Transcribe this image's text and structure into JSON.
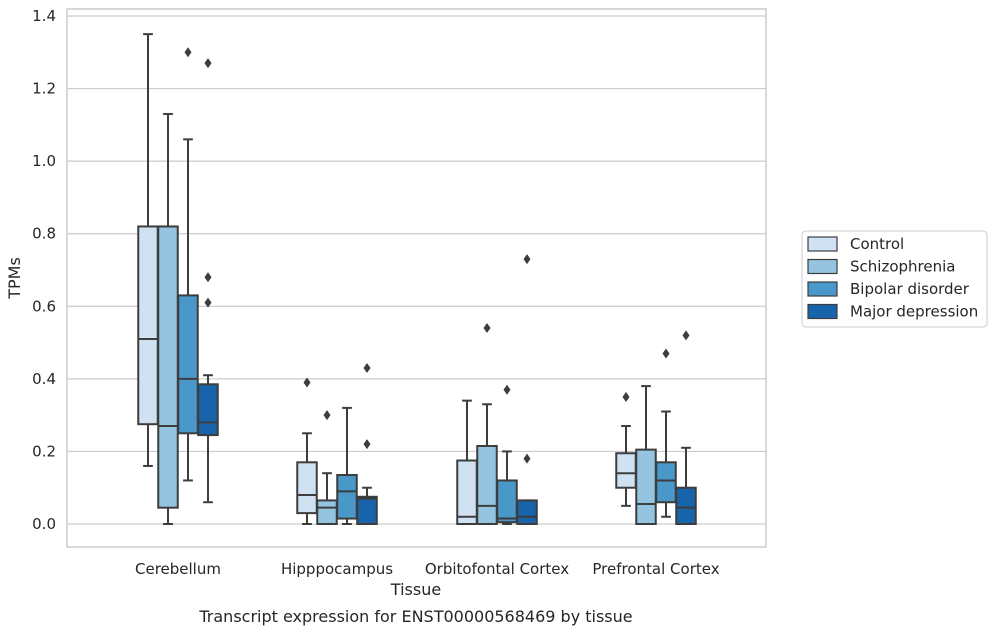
{
  "chart_data": {
    "type": "box",
    "title": "Transcript expression for ENST00000568469 by tissue",
    "xlabel": "Tissue",
    "ylabel": "TPMs",
    "ylim": [
      -0.065,
      1.42
    ],
    "yticks": [
      "0.0",
      "0.2",
      "0.4",
      "0.6",
      "0.8",
      "1.0",
      "1.2",
      "1.4"
    ],
    "ytick_values": [
      0,
      0.2,
      0.4,
      0.6,
      0.8,
      1.0,
      1.2,
      1.4
    ],
    "grid": true,
    "legend_position": "right",
    "categories": [
      "Cerebellum",
      "Hipppocampus",
      "Orbitofontal Cortex",
      "Prefrontal Cortex"
    ],
    "series": [
      {
        "name": "Control",
        "color": "#d0e1f2",
        "boxes": [
          {
            "whislo": 0.16,
            "q1": 0.275,
            "med": 0.51,
            "q3": 0.82,
            "whishi": 1.35,
            "fliers": []
          },
          {
            "whislo": 0.0,
            "q1": 0.03,
            "med": 0.08,
            "q3": 0.17,
            "whishi": 0.25,
            "fliers": [
              0.39
            ]
          },
          {
            "whislo": 0.0,
            "q1": 0.0,
            "med": 0.02,
            "q3": 0.175,
            "whishi": 0.34,
            "fliers": []
          },
          {
            "whislo": 0.05,
            "q1": 0.1,
            "med": 0.14,
            "q3": 0.195,
            "whishi": 0.27,
            "fliers": [
              0.35
            ]
          }
        ]
      },
      {
        "name": "Schizophrenia",
        "color": "#94c4df",
        "boxes": [
          {
            "whislo": 0.0,
            "q1": 0.045,
            "med": 0.27,
            "q3": 0.82,
            "whishi": 1.13,
            "fliers": []
          },
          {
            "whislo": 0.0,
            "q1": 0.0,
            "med": 0.045,
            "q3": 0.065,
            "whishi": 0.14,
            "fliers": [
              0.3
            ]
          },
          {
            "whislo": 0.0,
            "q1": 0.0,
            "med": 0.05,
            "q3": 0.215,
            "whishi": 0.33,
            "fliers": [
              0.54
            ]
          },
          {
            "whislo": 0.0,
            "q1": 0.0,
            "med": 0.055,
            "q3": 0.205,
            "whishi": 0.38,
            "fliers": []
          }
        ]
      },
      {
        "name": "Bipolar disorder",
        "color": "#4a98c9",
        "boxes": [
          {
            "whislo": 0.12,
            "q1": 0.25,
            "med": 0.4,
            "q3": 0.63,
            "whishi": 1.06,
            "fliers": [
              1.3
            ]
          },
          {
            "whislo": 0.0,
            "q1": 0.015,
            "med": 0.09,
            "q3": 0.135,
            "whishi": 0.32,
            "fliers": []
          },
          {
            "whislo": 0.0,
            "q1": 0.005,
            "med": 0.015,
            "q3": 0.12,
            "whishi": 0.2,
            "fliers": [
              0.37
            ]
          },
          {
            "whislo": 0.02,
            "q1": 0.06,
            "med": 0.12,
            "q3": 0.17,
            "whishi": 0.31,
            "fliers": [
              0.47
            ]
          }
        ]
      },
      {
        "name": "Major depression",
        "color": "#1764ab",
        "boxes": [
          {
            "whislo": 0.06,
            "q1": 0.245,
            "med": 0.28,
            "q3": 0.385,
            "whishi": 0.41,
            "fliers": [
              0.61,
              0.68,
              1.27
            ]
          },
          {
            "whislo": 0.0,
            "q1": 0.0,
            "med": 0.07,
            "q3": 0.075,
            "whishi": 0.1,
            "fliers": [
              0.22,
              0.43
            ]
          },
          {
            "whislo": 0.0,
            "q1": 0.0,
            "med": 0.02,
            "q3": 0.065,
            "whishi": 0.065,
            "fliers": [
              0.18,
              0.73
            ]
          },
          {
            "whislo": 0.0,
            "q1": 0.0,
            "med": 0.045,
            "q3": 0.1,
            "whishi": 0.21,
            "fliers": [
              0.52
            ]
          }
        ]
      }
    ]
  }
}
